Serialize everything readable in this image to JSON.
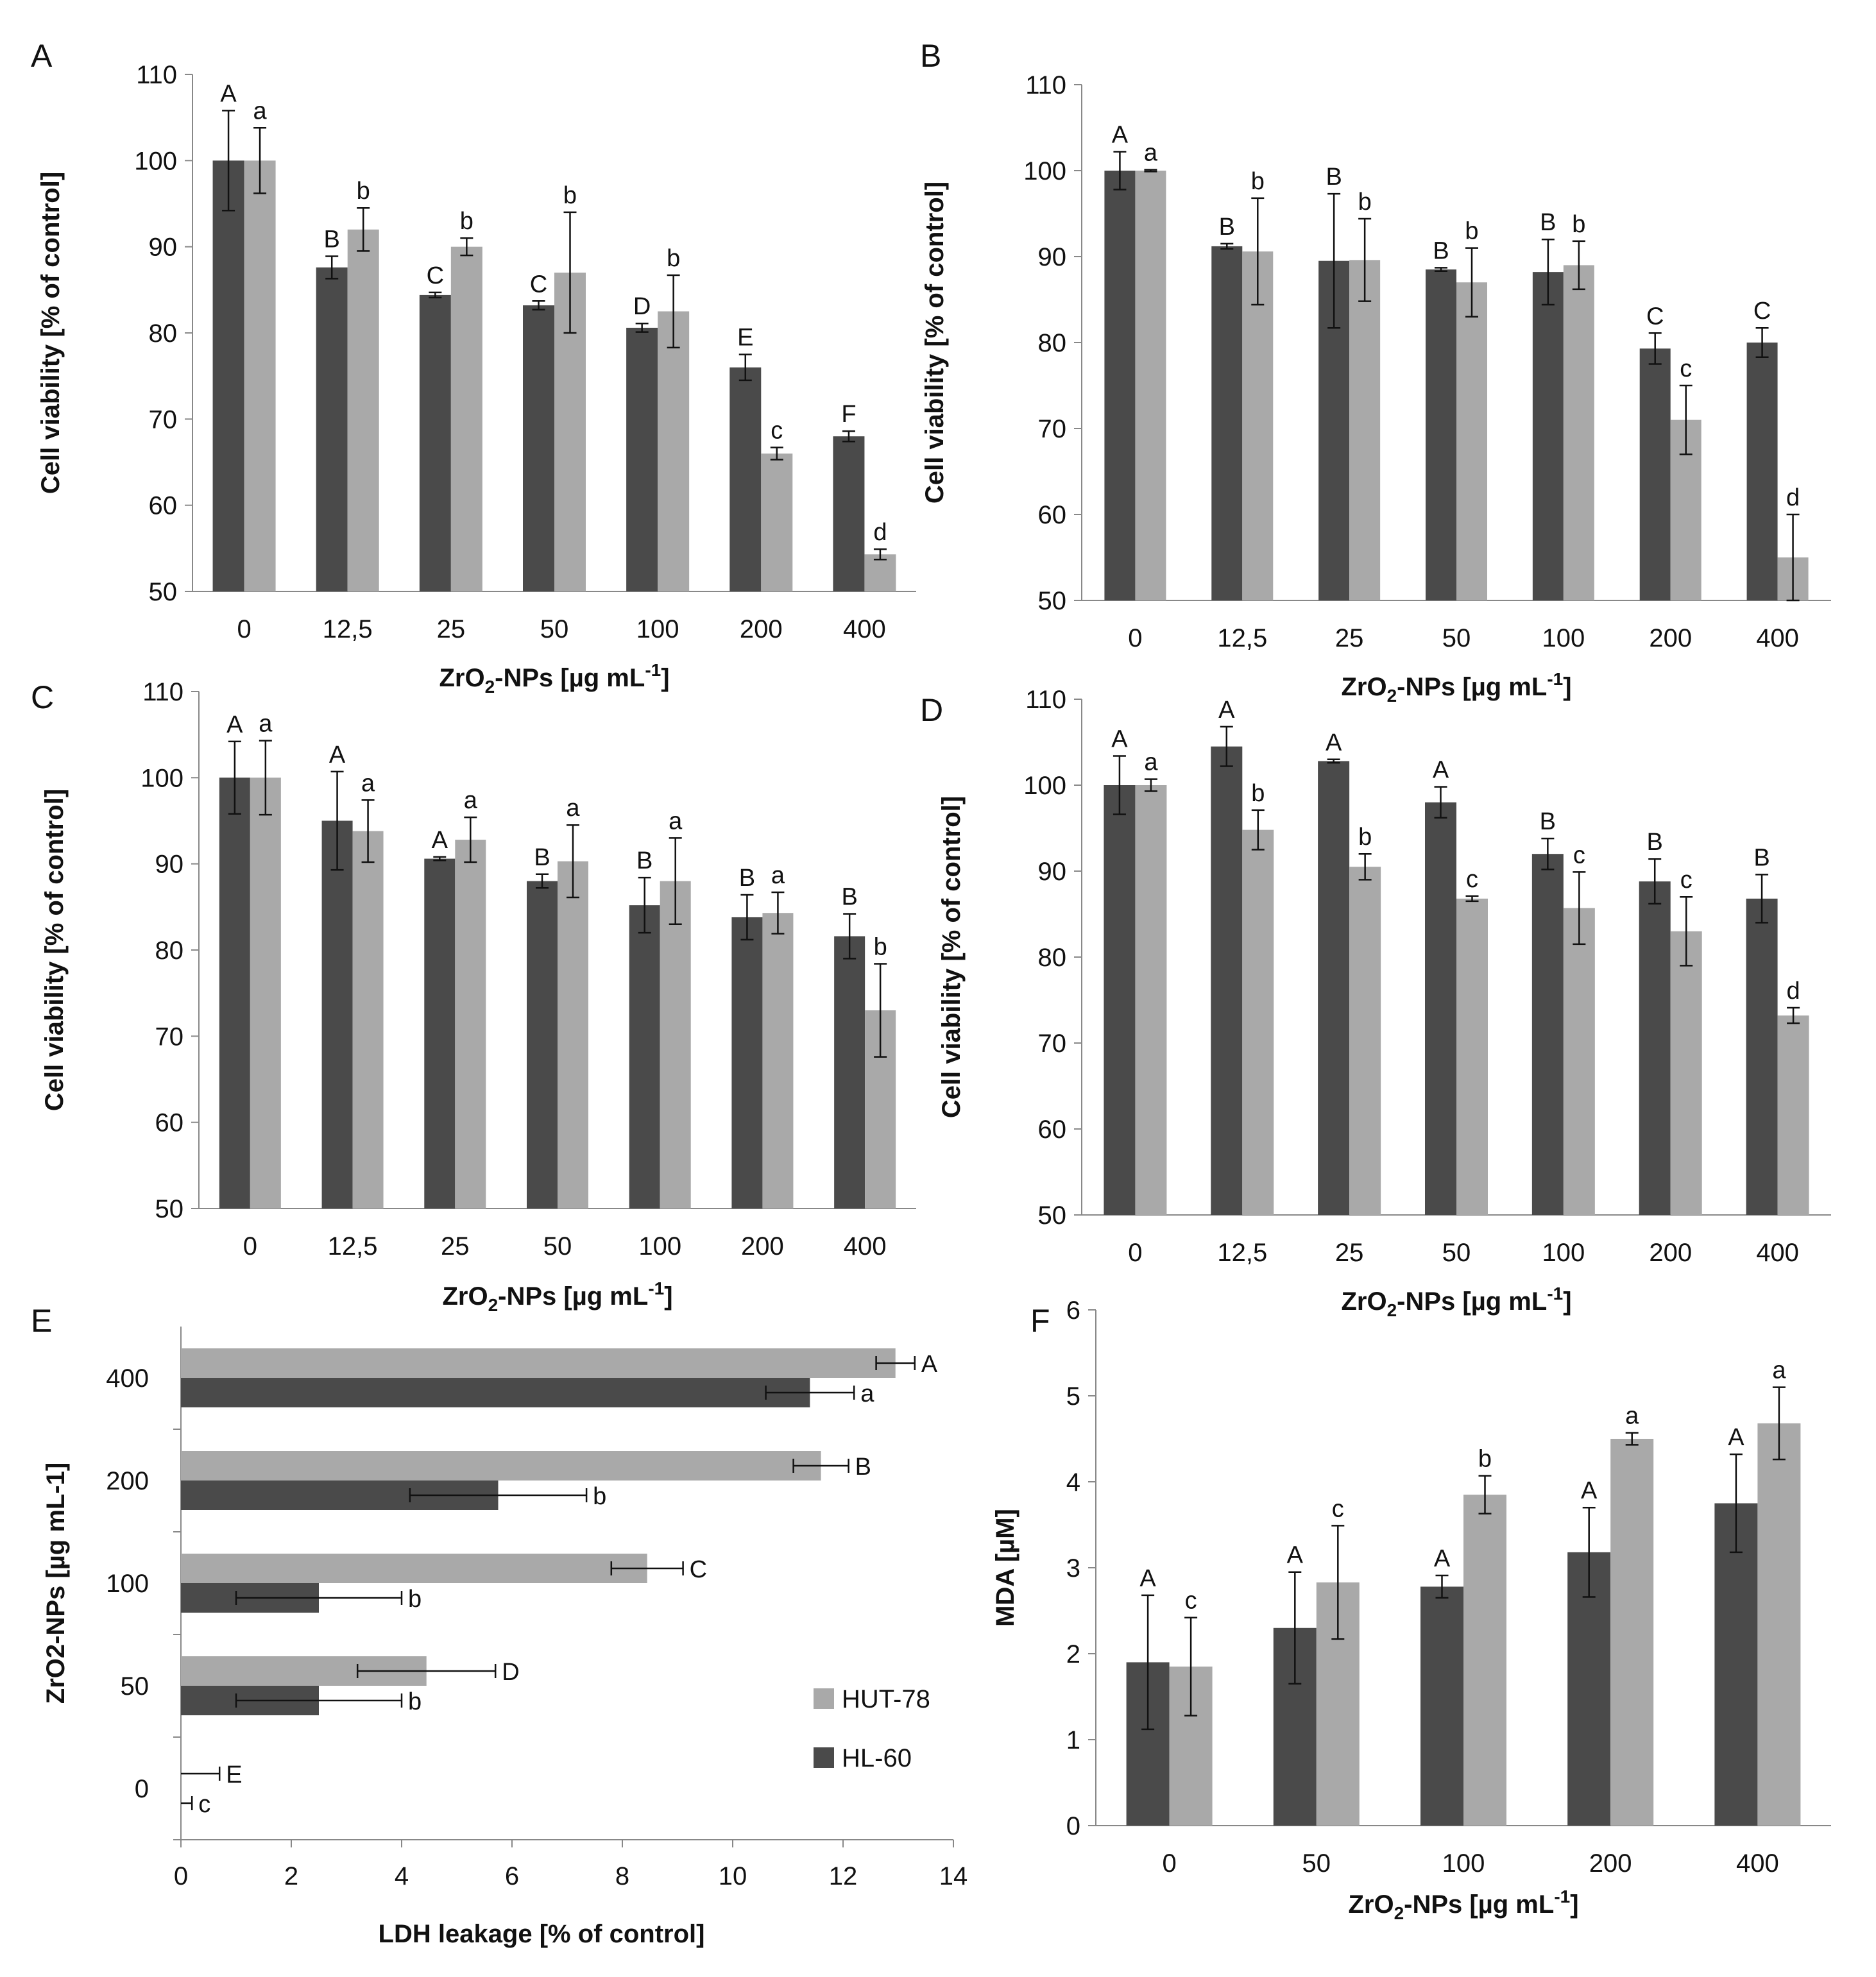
{
  "colors": {
    "hl60": "#4a4a4a",
    "hut78": "#a9a9a9",
    "axis": "#888888",
    "text": "#111111"
  },
  "legend": {
    "hut78": "HUT-78",
    "hl60": "HL-60"
  },
  "chart_data": [
    {
      "panel": "A",
      "type": "bar",
      "categories": [
        "0",
        "12,5",
        "25",
        "50",
        "100",
        "200",
        "400"
      ],
      "ylim": [
        50,
        110
      ],
      "yticks": [
        50,
        60,
        70,
        80,
        90,
        100,
        110
      ],
      "ylabel": "Cell viability [% of control]",
      "xlabel": "ZrO",
      "xlabel_sub": "2",
      "xlabel_rest": "-NPs [µg mL",
      "xlabel_sup": "-1",
      "xlabel_end": "]",
      "series": [
        {
          "name": "HL-60",
          "values": [
            100,
            87.6,
            84.4,
            83.2,
            80.6,
            76,
            68
          ],
          "errors": [
            5.8,
            1.3,
            0.3,
            0.5,
            0.5,
            1.5,
            0.6
          ],
          "letters": [
            "A",
            "B",
            "C",
            "C",
            "D",
            "E",
            "F"
          ]
        },
        {
          "name": "HUT-78",
          "values": [
            100,
            92,
            90,
            87,
            82.5,
            66,
            54.3
          ],
          "errors": [
            3.8,
            2.5,
            1.0,
            7.0,
            4.2,
            0.7,
            0.6
          ],
          "letters": [
            "a",
            "b",
            "b",
            "b",
            "b",
            "c",
            "d"
          ]
        }
      ]
    },
    {
      "panel": "B",
      "type": "bar",
      "categories": [
        "0",
        "12,5",
        "25",
        "50",
        "100",
        "200",
        "400"
      ],
      "ylim": [
        50,
        110
      ],
      "yticks": [
        50,
        60,
        70,
        80,
        90,
        100,
        110
      ],
      "ylabel": "Cell viability [% of control]",
      "xlabel": "ZrO",
      "xlabel_sub": "2",
      "xlabel_rest": "-NPs [µg mL",
      "xlabel_sup": "-1",
      "xlabel_end": "]",
      "series": [
        {
          "name": "HL-60",
          "values": [
            100,
            91.2,
            89.5,
            88.5,
            88.2,
            79.3,
            80
          ],
          "errors": [
            2.2,
            0.3,
            7.8,
            0.2,
            3.8,
            1.8,
            1.7
          ],
          "letters": [
            "A",
            "B",
            "B",
            "B",
            "B",
            "C",
            "C"
          ]
        },
        {
          "name": "HUT-78",
          "values": [
            100,
            90.6,
            89.6,
            87,
            89,
            71,
            55
          ],
          "errors": [
            0.1,
            6.2,
            4.8,
            4.0,
            2.8,
            4.0,
            5.0
          ],
          "letters": [
            "a",
            "b",
            "b",
            "b",
            "b",
            "c",
            "d"
          ]
        }
      ]
    },
    {
      "panel": "C",
      "type": "bar",
      "categories": [
        "0",
        "12,5",
        "25",
        "50",
        "100",
        "200",
        "400"
      ],
      "ylim": [
        50,
        110
      ],
      "yticks": [
        50,
        60,
        70,
        80,
        90,
        100,
        110
      ],
      "ylabel": "Cell viability [% of control]",
      "xlabel": "ZrO",
      "xlabel_sub": "2",
      "xlabel_rest": "-NPs [µg mL",
      "xlabel_sup": "-1",
      "xlabel_end": "]",
      "series": [
        {
          "name": "HL-60",
          "values": [
            100,
            95,
            90.6,
            88,
            85.2,
            83.8,
            81.6
          ],
          "errors": [
            4.2,
            5.7,
            0.2,
            0.8,
            3.2,
            2.6,
            2.6
          ],
          "letters": [
            "A",
            "A",
            "A",
            "B",
            "B",
            "B",
            "B"
          ]
        },
        {
          "name": "HUT-78",
          "values": [
            100,
            93.8,
            92.8,
            90.3,
            88,
            84.3,
            73
          ],
          "errors": [
            4.3,
            3.6,
            2.6,
            4.2,
            5.0,
            2.4,
            5.4
          ],
          "letters": [
            "a",
            "a",
            "a",
            "a",
            "a",
            "a",
            "b"
          ]
        }
      ]
    },
    {
      "panel": "D",
      "type": "bar",
      "categories": [
        "0",
        "12,5",
        "25",
        "50",
        "100",
        "200",
        "400"
      ],
      "ylim": [
        50,
        110
      ],
      "yticks": [
        50,
        60,
        70,
        80,
        90,
        100,
        110
      ],
      "ylabel": "Cell viability [% of control]",
      "xlabel": "ZrO",
      "xlabel_sub": "2",
      "xlabel_rest": "-NPs [µg mL",
      "xlabel_sup": "-1",
      "xlabel_end": "]",
      "series": [
        {
          "name": "HL-60",
          "values": [
            100,
            104.5,
            102.8,
            98,
            92,
            88.8,
            86.8
          ],
          "errors": [
            3.4,
            2.3,
            0.2,
            1.8,
            1.8,
            2.6,
            2.8
          ],
          "letters": [
            "A",
            "A",
            "A",
            "A",
            "B",
            "B",
            "B"
          ]
        },
        {
          "name": "HUT-78",
          "values": [
            100,
            94.8,
            90.5,
            86.8,
            85.7,
            83,
            73.2
          ],
          "errors": [
            0.7,
            2.3,
            1.5,
            0.3,
            4.2,
            4.0,
            0.9
          ],
          "letters": [
            "a",
            "b",
            "b",
            "c",
            "c",
            "c",
            "d"
          ]
        }
      ]
    },
    {
      "panel": "E",
      "type": "bar",
      "orientation": "horizontal",
      "categories": [
        "0",
        "50",
        "100",
        "200",
        "400"
      ],
      "xlim": [
        0,
        14
      ],
      "xticks": [
        0,
        2,
        4,
        6,
        8,
        10,
        12,
        14
      ],
      "xlabel": "LDH leakage  [% of control]",
      "ylabel": "ZrO2-NPs [µg mL-1]",
      "series": [
        {
          "name": "HUT-78",
          "values": [
            0,
            4.45,
            8.45,
            11.6,
            12.95
          ],
          "errors": [
            0.7,
            1.25,
            0.65,
            0.5,
            0.35
          ],
          "letters": [
            "E",
            "D",
            "C",
            "B",
            "A"
          ]
        },
        {
          "name": "HL-60",
          "values": [
            0,
            2.5,
            2.5,
            5.75,
            11.4
          ],
          "errors": [
            0.2,
            1.5,
            1.5,
            1.6,
            0.8
          ],
          "letters": [
            "c",
            "b",
            "b",
            "b",
            "a"
          ]
        }
      ]
    },
    {
      "panel": "F",
      "type": "bar",
      "categories": [
        "0",
        "50",
        "100",
        "200",
        "400"
      ],
      "ylim": [
        0,
        6
      ],
      "yticks": [
        0,
        1,
        2,
        3,
        4,
        5,
        6
      ],
      "ylabel": "MDA [µM]",
      "xlabel": "ZrO",
      "xlabel_sub": "2",
      "xlabel_rest": "-NPs [µg mL",
      "xlabel_sup": "-1",
      "xlabel_end": "]",
      "series": [
        {
          "name": "HL-60",
          "values": [
            1.9,
            2.3,
            2.78,
            3.18,
            3.75
          ],
          "errors": [
            0.78,
            0.65,
            0.13,
            0.52,
            0.57
          ],
          "letters": [
            "A",
            "A",
            "A",
            "A",
            "A"
          ]
        },
        {
          "name": "HUT-78",
          "values": [
            1.85,
            2.83,
            3.85,
            4.5,
            4.68
          ],
          "errors": [
            0.57,
            0.66,
            0.22,
            0.07,
            0.42
          ],
          "letters": [
            "c",
            "c",
            "b",
            "a",
            "a"
          ]
        }
      ]
    }
  ]
}
